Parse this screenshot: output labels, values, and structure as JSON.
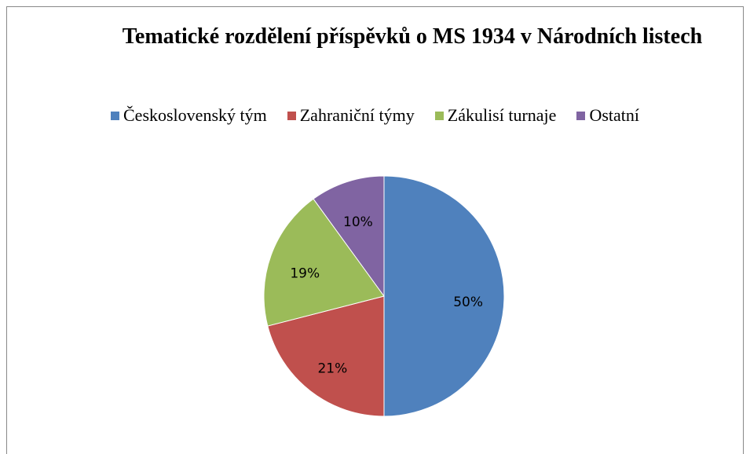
{
  "chart_data": {
    "type": "pie",
    "title": "Tematické rozdělení příspěvků o MS 1934 v Národních listech",
    "categories": [
      "Československý tým",
      "Zahraniční týmy",
      "Zákulisí turnaje",
      "Ostatní"
    ],
    "values": [
      50,
      21,
      19,
      10
    ],
    "value_labels": [
      "50%",
      "21%",
      "19%",
      "10%"
    ],
    "colors": [
      "#4f81bd",
      "#c0504d",
      "#9bbb59",
      "#8064a2"
    ],
    "legend": "top"
  }
}
